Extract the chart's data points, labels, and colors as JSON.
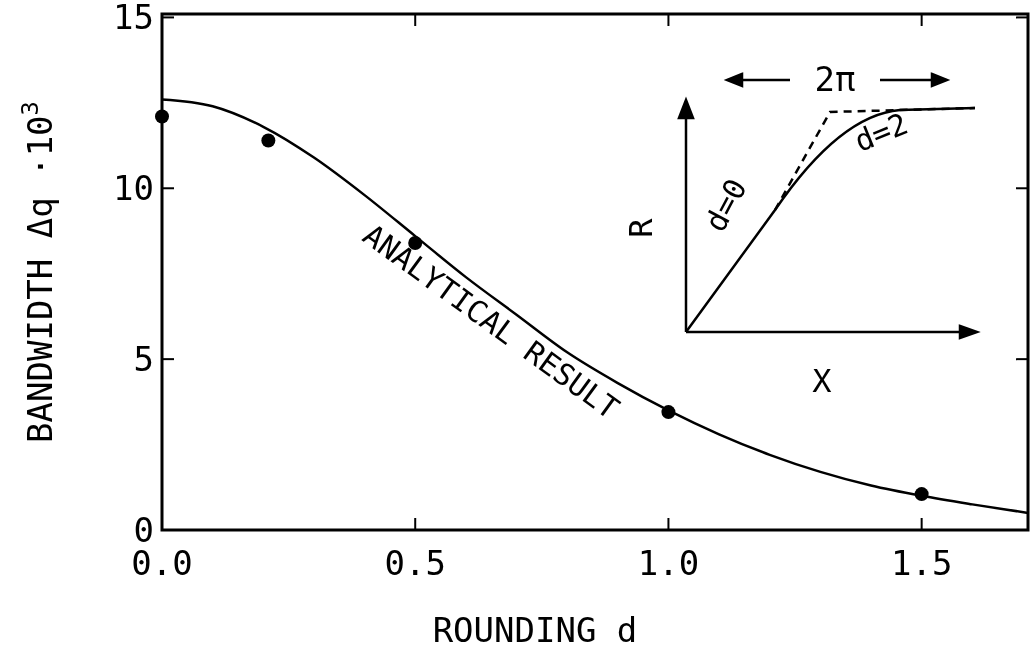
{
  "chart_data": {
    "type": "scatter",
    "xlabel": "ROUNDING d",
    "ylabel": "BANDWIDTH Δq ·10$^{3}$",
    "xlim": [
      0,
      1.71
    ],
    "ylim": [
      0,
      15.1
    ],
    "xticks": [
      {
        "value": 0,
        "label": "0.0"
      },
      {
        "value": 0.5,
        "label": "0.5"
      },
      {
        "value": 1,
        "label": "1.0"
      },
      {
        "value": 1.5,
        "label": "1.5"
      }
    ],
    "yticks": [
      0,
      5,
      10,
      15
    ],
    "series": [
      {
        "marker": "circle",
        "color": "#000000",
        "x": [
          0,
          0.21,
          0.5,
          1.0,
          1.5
        ],
        "values": [
          12.1,
          11.4,
          8.4,
          3.45,
          1.05
        ]
      },
      {
        "type": "line",
        "color": "#000000",
        "line_style": "solid",
        "x": [
          0,
          0.1,
          0.2,
          0.3,
          0.4,
          0.5,
          0.6,
          0.7,
          0.8,
          0.9,
          1.0,
          1.1,
          1.2,
          1.3,
          1.4,
          1.5,
          1.6,
          1.71
        ],
        "values": [
          12.6,
          12.4,
          11.8,
          10.9,
          9.8,
          8.6,
          7.4,
          6.3,
          5.2,
          4.3,
          3.5,
          2.8,
          2.2,
          1.7,
          1.3,
          1.0,
          0.75,
          0.5
        ]
      }
    ],
    "annotations": [
      "ANALYTICAL RESULT",
      "2π",
      "R",
      "X",
      "d=0",
      "d=2"
    ]
  }
}
